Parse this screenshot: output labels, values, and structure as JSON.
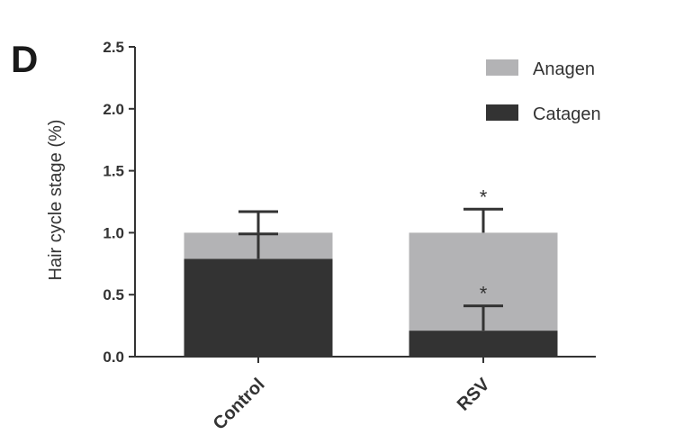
{
  "panel_label": "D",
  "chart_data": {
    "type": "bar",
    "stacked": true,
    "categories": [
      "Control",
      "RSV"
    ],
    "series": [
      {
        "name": "Catagen",
        "values": [
          0.79,
          0.21
        ],
        "error_upper": [
          0.99,
          0.41
        ],
        "significance": [
          "",
          "*"
        ]
      },
      {
        "name": "Anagen",
        "values": [
          0.21,
          0.79
        ],
        "error_upper": [
          1.17,
          1.19
        ],
        "significance": [
          "",
          "*"
        ]
      }
    ],
    "ylabel": "Hair cycle stage (%)",
    "xlabel": "",
    "ylim": [
      0,
      2.5
    ],
    "yticks": [
      "0.0",
      "0.5",
      "1.0",
      "1.5",
      "2.0",
      "2.5"
    ],
    "grid": false,
    "legend_position": "top-right",
    "colors": {
      "Catagen": "#333333",
      "Anagen": "#b3b3b5",
      "axis": "#333333"
    }
  }
}
